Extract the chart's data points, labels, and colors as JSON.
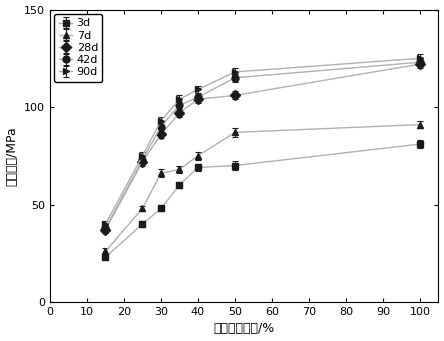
{
  "x": [
    15,
    25,
    30,
    35,
    40,
    50,
    100
  ],
  "series": [
    {
      "key": "3d",
      "y": [
        23,
        40,
        48,
        60,
        69,
        70,
        81
      ],
      "yerr": [
        1.5,
        1.5,
        1.5,
        1.5,
        2.0,
        2.5,
        2.0
      ],
      "marker": "s",
      "label": "3d"
    },
    {
      "key": "7d",
      "y": [
        26,
        48,
        66,
        68,
        75,
        87,
        91
      ],
      "yerr": [
        1.5,
        1.5,
        2.0,
        2.0,
        2.0,
        2.5,
        2.0
      ],
      "marker": "^",
      "label": "7d"
    },
    {
      "key": "28d",
      "y": [
        37,
        72,
        86,
        97,
        104,
        106,
        122
      ],
      "yerr": [
        1.5,
        2.0,
        2.0,
        2.0,
        2.0,
        2.0,
        2.0
      ],
      "marker": "D",
      "label": "28d"
    },
    {
      "key": "42d",
      "y": [
        38,
        73,
        90,
        101,
        105,
        115,
        123
      ],
      "yerr": [
        1.5,
        2.0,
        2.0,
        2.0,
        2.0,
        2.0,
        2.0
      ],
      "marker": "o",
      "label": "42d"
    },
    {
      "key": "90d",
      "y": [
        40,
        75,
        93,
        104,
        109,
        118,
        125
      ],
      "yerr": [
        1.5,
        2.0,
        2.0,
        2.0,
        2.0,
        2.0,
        2.0
      ],
      "marker": ">",
      "label": "90d"
    }
  ],
  "xlabel": "超细水泥渗量/%",
  "ylabel": "抗压强度/MPa",
  "xlim": [
    0,
    105
  ],
  "ylim": [
    0,
    150
  ],
  "xticks": [
    0,
    10,
    20,
    30,
    40,
    50,
    60,
    70,
    80,
    90,
    100
  ],
  "yticks": [
    0,
    50,
    100,
    150
  ],
  "line_color": "#b0b0b0",
  "marker_color": "#1a1a1a",
  "marker_size": 5,
  "capsize": 2,
  "legend_loc": "upper left",
  "figsize": [
    4.44,
    3.41
  ],
  "dpi": 100
}
